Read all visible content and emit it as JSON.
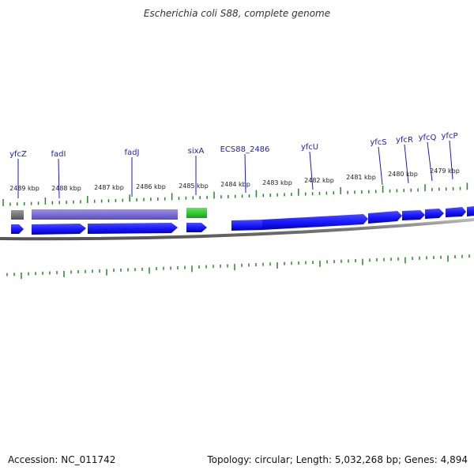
{
  "title": "Escherichia coli S88, complete genome",
  "footer": {
    "accession": "Accession: NC_011742",
    "summary": "Topology: circular; Length: 5,032,268 bp; Genes: 4,894"
  },
  "colors": {
    "gene_forward": "#1a1aff",
    "gene_reverse_track": "#7b6fd6",
    "gene_gray": "#777777",
    "gene_green": "#33cc33",
    "tick": "#228822",
    "label_gene": "#1a1acc",
    "backbone": "#888888"
  },
  "scale_labels": [
    "2489 kbp",
    "2488 kbp",
    "2487 kbp",
    "2486 kbp",
    "2485 kbp",
    "2484 kbp",
    "2483 kbp",
    "2482 kbp",
    "2481 kbp",
    "2480 kbp",
    "2479 kbp"
  ],
  "gene_labels": [
    "yfcZ",
    "fadI",
    "fadJ",
    "sixA",
    "ECS88_2486",
    "yfcU",
    "yfcS",
    "yfcR",
    "yfcQ",
    "yfcP"
  ],
  "tracks": {
    "features_upper": [
      "gray",
      "purple",
      "green"
    ],
    "features_lower": [
      "blue"
    ]
  }
}
